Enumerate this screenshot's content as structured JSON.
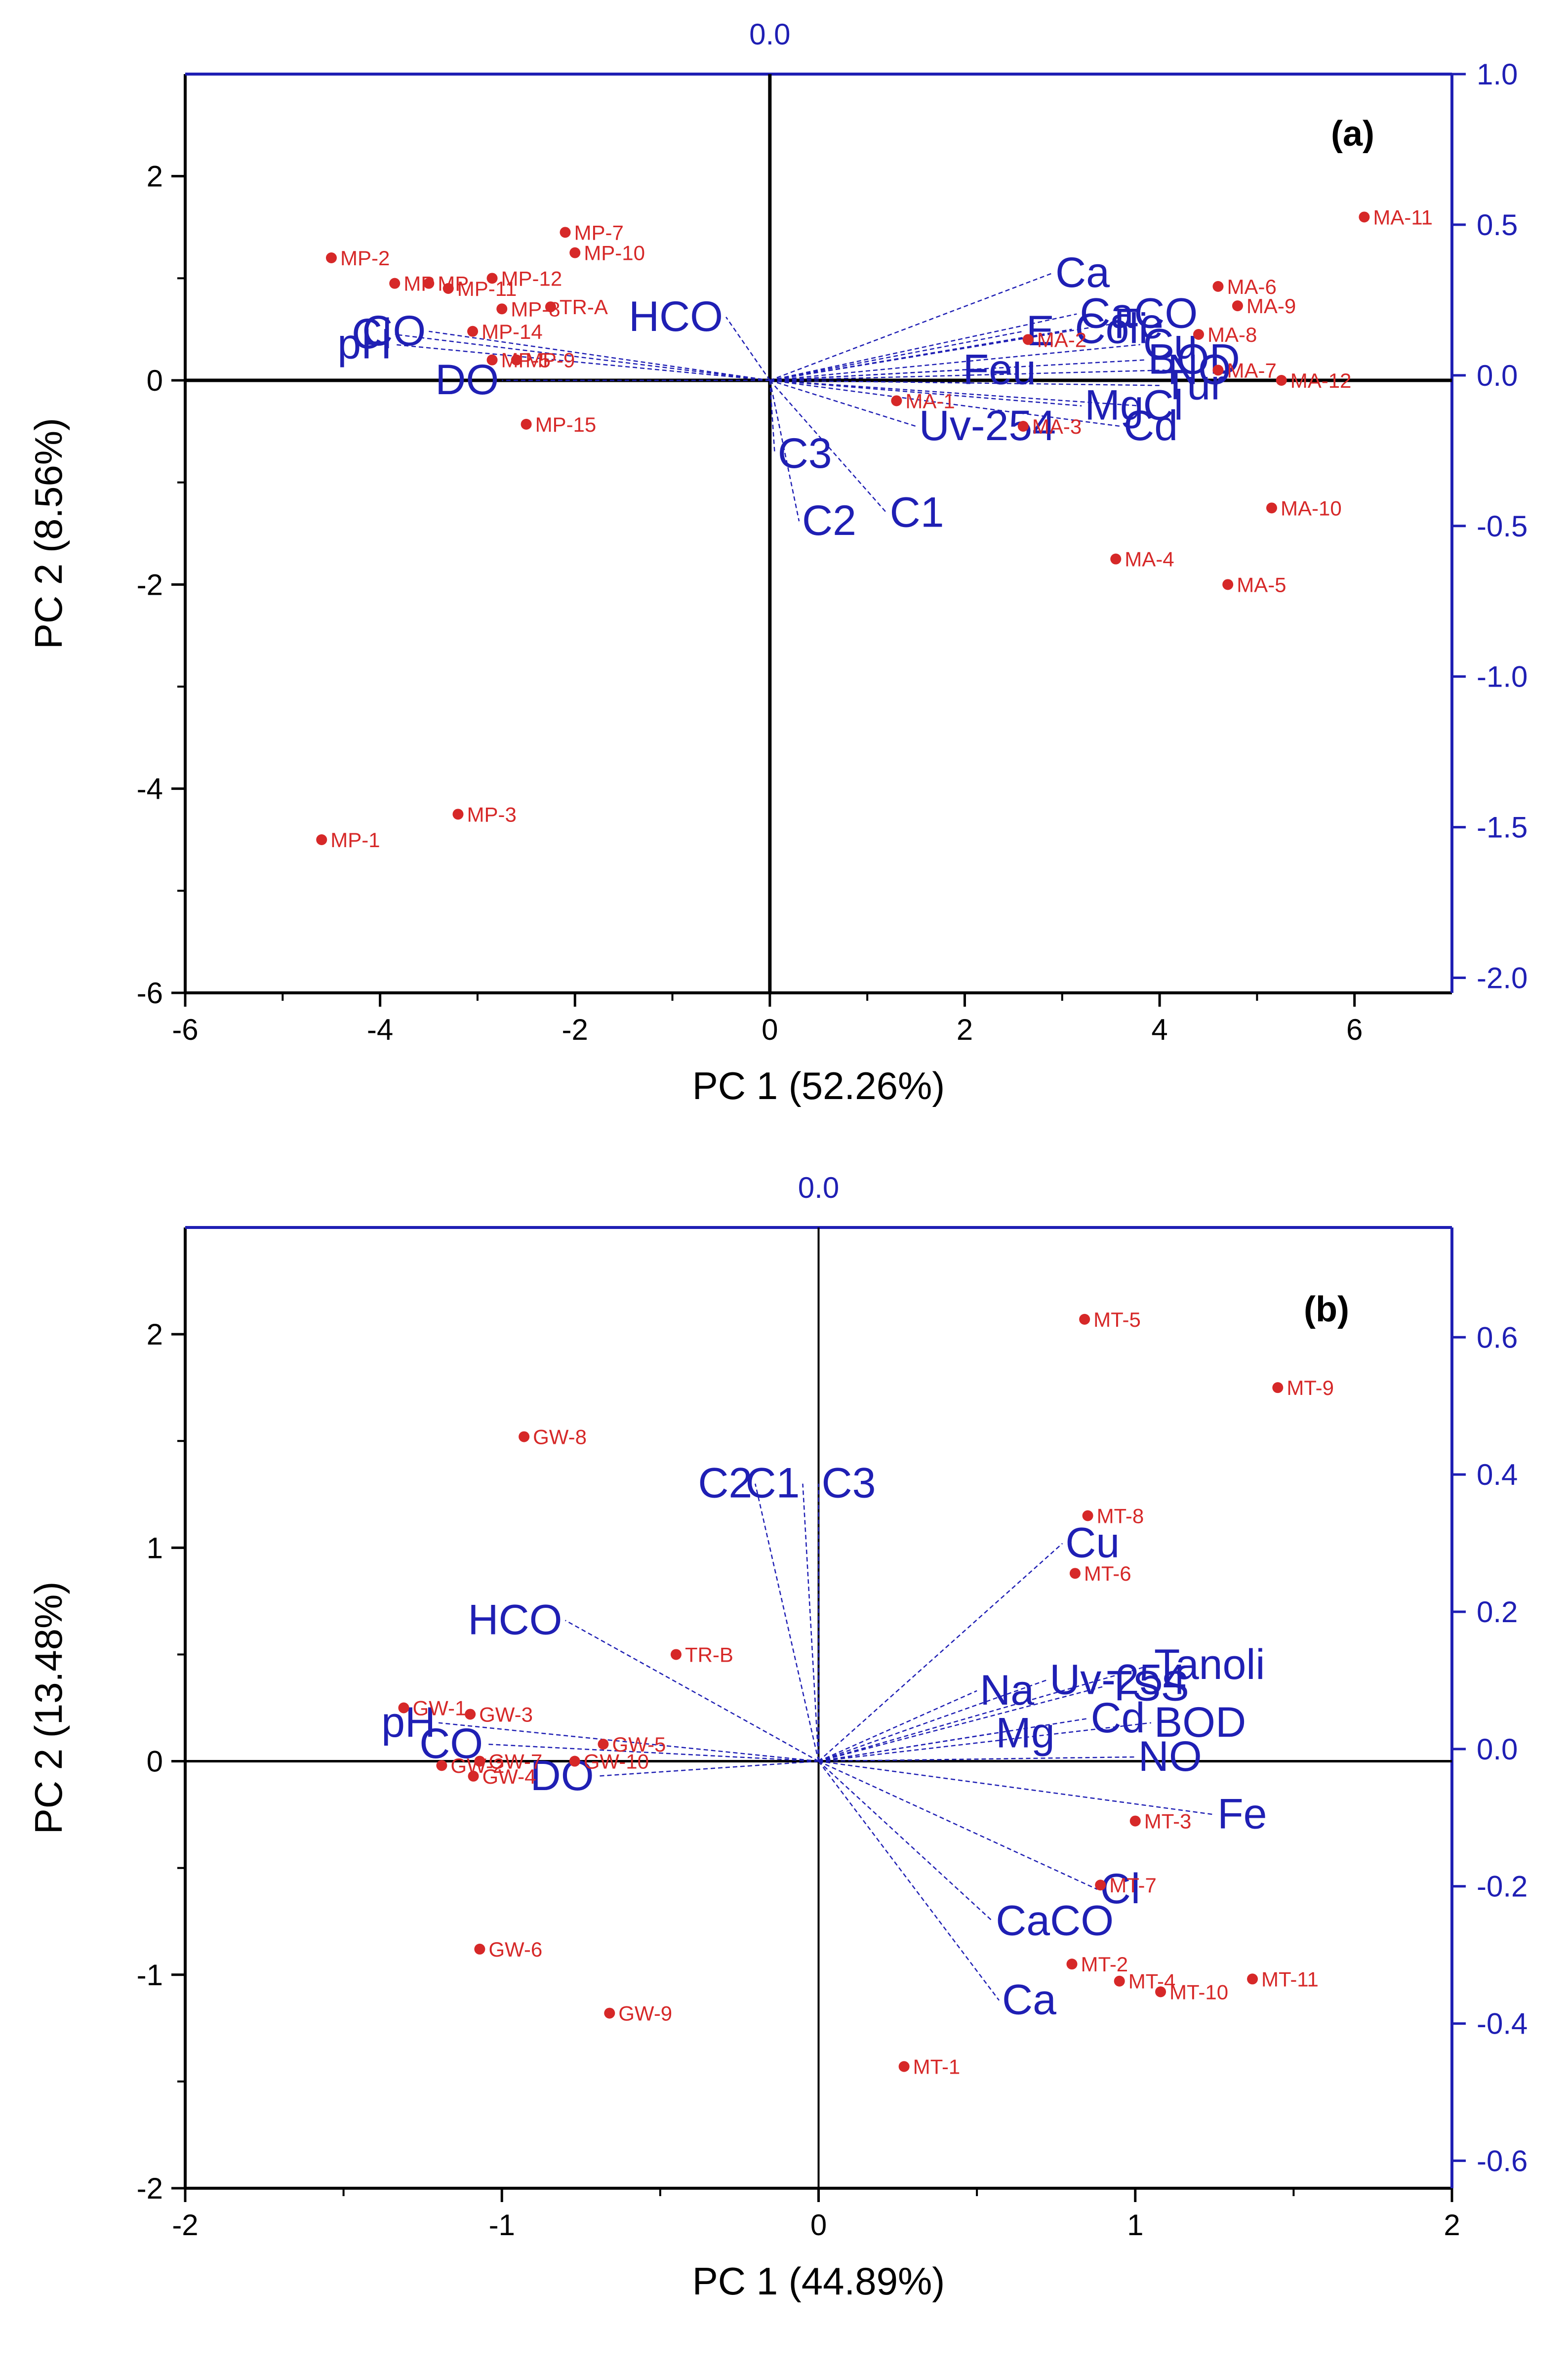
{
  "chart_data": [
    {
      "type": "scatter",
      "panel_label": "(a)",
      "xlabel": "PC 1 (52.26%)",
      "ylabel": "PC 2 (8.56%)",
      "xlim": [
        -6,
        7
      ],
      "ylim": [
        -6,
        3
      ],
      "x_ticks": [
        "-6",
        "-4",
        "-2",
        "0",
        "2",
        "4",
        "6"
      ],
      "y_ticks": [
        "-6",
        "-4",
        "-2",
        "0",
        "2"
      ],
      "loading_axis": {
        "top_label": "0.0",
        "ylim": [
          -2.05,
          1.0
        ],
        "ticks": [
          "1.0",
          "0.5",
          "0.0",
          "-0.5",
          "-1.0",
          "-1.5",
          "-2.0"
        ]
      },
      "colors": {
        "scores": "#d62828",
        "loadings": "#1f1fb4",
        "axes": "#1f1fb4"
      },
      "scores": [
        {
          "label": "MP-1",
          "x": -4.6,
          "y": -4.5
        },
        {
          "label": "MP-3",
          "x": -3.2,
          "y": -4.25
        },
        {
          "label": "MP-2",
          "x": -4.5,
          "y": 1.2
        },
        {
          "label": "MP-7",
          "x": -2.1,
          "y": 1.45
        },
        {
          "label": "MP-10",
          "x": -2.0,
          "y": 1.25
        },
        {
          "label": "MP-12",
          "x": -2.85,
          "y": 1.0
        },
        {
          "label": "MP",
          "x": -3.85,
          "y": 0.95
        },
        {
          "label": "MP",
          "x": -3.5,
          "y": 0.95
        },
        {
          "label": "MP-11",
          "x": -3.3,
          "y": 0.9
        },
        {
          "label": "MP-8",
          "x": -2.75,
          "y": 0.7
        },
        {
          "label": "TR-A",
          "x": -2.25,
          "y": 0.72
        },
        {
          "label": "MP-14",
          "x": -3.05,
          "y": 0.48
        },
        {
          "label": "MP-5",
          "x": -2.85,
          "y": 0.2
        },
        {
          "label": "MP-9",
          "x": -2.6,
          "y": 0.2
        },
        {
          "label": "MP-15",
          "x": -2.5,
          "y": -0.43
        },
        {
          "label": "MA-11",
          "x": 6.1,
          "y": 1.6
        },
        {
          "label": "MA-6",
          "x": 4.6,
          "y": 0.92
        },
        {
          "label": "MA-9",
          "x": 4.8,
          "y": 0.73
        },
        {
          "label": "MA-2",
          "x": 2.65,
          "y": 0.4
        },
        {
          "label": "MA-8",
          "x": 4.4,
          "y": 0.45
        },
        {
          "label": "MA-7",
          "x": 4.6,
          "y": 0.1
        },
        {
          "label": "MA-12",
          "x": 5.25,
          "y": 0.0
        },
        {
          "label": "MA-1",
          "x": 1.3,
          "y": -0.2
        },
        {
          "label": "MA-3",
          "x": 2.6,
          "y": -0.45
        },
        {
          "label": "MA-10",
          "x": 5.15,
          "y": -1.25
        },
        {
          "label": "MA-4",
          "x": 3.55,
          "y": -1.75
        },
        {
          "label": "MA-5",
          "x": 4.7,
          "y": -2.0
        }
      ],
      "loadings": [
        {
          "label": "Ca",
          "x": 2.9,
          "y": 1.05
        },
        {
          "label": "CaCO",
          "x": 3.15,
          "y": 0.65
        },
        {
          "label": "Fe",
          "x": 3.5,
          "y": 0.55
        },
        {
          "label": "Coli",
          "x": 3.1,
          "y": 0.5
        },
        {
          "label": "E",
          "x": 2.6,
          "y": 0.48
        },
        {
          "label": "Cu",
          "x": 3.8,
          "y": 0.35
        },
        {
          "label": "Feu",
          "x": 1.95,
          "y": 0.1
        },
        {
          "label": "BOD",
          "x": 3.85,
          "y": 0.2
        },
        {
          "label": "NO",
          "x": 4.05,
          "y": 0.1
        },
        {
          "label": "Tur",
          "x": 4.0,
          "y": -0.05
        },
        {
          "label": "Mg",
          "x": 3.2,
          "y": -0.25
        },
        {
          "label": "Cl",
          "x": 3.8,
          "y": -0.25
        },
        {
          "label": "Cd",
          "x": 3.6,
          "y": -0.45
        },
        {
          "label": "Uv-254",
          "x": 1.5,
          "y": -0.45
        },
        {
          "label": "HCO",
          "x": -0.45,
          "y": 0.62
        },
        {
          "label": "C3",
          "x": 0.05,
          "y": -0.72
        },
        {
          "label": "C2",
          "x": 0.3,
          "y": -1.38
        },
        {
          "label": "C1",
          "x": 1.2,
          "y": -1.3
        },
        {
          "label": "Cl",
          "x": -3.85,
          "y": 0.45
        },
        {
          "label": "pH",
          "x": -3.85,
          "y": 0.35
        },
        {
          "label": "CO",
          "x": -3.5,
          "y": 0.48
        },
        {
          "label": "DO",
          "x": -2.75,
          "y": 0.0
        }
      ]
    },
    {
      "type": "scatter",
      "panel_label": "(b)",
      "xlabel": "PC 1 (44.89%)",
      "ylabel": "PC 2 (13.48%)",
      "xlim": [
        -2,
        2
      ],
      "ylim": [
        -2,
        2.5
      ],
      "x_ticks": [
        "-2",
        "-1",
        "0",
        "1",
        "2"
      ],
      "y_ticks": [
        "-2",
        "-1",
        "0",
        "1",
        "2"
      ],
      "loading_axis": {
        "top_label": "0.0",
        "ylim": [
          -0.64,
          0.76
        ],
        "ticks": [
          "0.6",
          "0.4",
          "0.2",
          "0.0",
          "-0.2",
          "-0.4",
          "-0.6"
        ]
      },
      "colors": {
        "scores": "#d62828",
        "loadings": "#1f1fb4",
        "axes": "#1f1fb4"
      },
      "scores": [
        {
          "label": "MT-5",
          "x": 0.84,
          "y": 2.07
        },
        {
          "label": "MT-9",
          "x": 1.45,
          "y": 1.75
        },
        {
          "label": "MT-8",
          "x": 0.85,
          "y": 1.15
        },
        {
          "label": "MT-6",
          "x": 0.81,
          "y": 0.88
        },
        {
          "label": "MT-3",
          "x": 1.0,
          "y": -0.28
        },
        {
          "label": "MT-7",
          "x": 0.89,
          "y": -0.58
        },
        {
          "label": "MT-2",
          "x": 0.8,
          "y": -0.95
        },
        {
          "label": "MT-4",
          "x": 0.95,
          "y": -1.03
        },
        {
          "label": "MT-10",
          "x": 1.08,
          "y": -1.08
        },
        {
          "label": "MT-11",
          "x": 1.37,
          "y": -1.02
        },
        {
          "label": "MT-1",
          "x": 0.27,
          "y": -1.43
        },
        {
          "label": "GW-8",
          "x": -0.93,
          "y": 1.52
        },
        {
          "label": "TR-B",
          "x": -0.45,
          "y": 0.5
        },
        {
          "label": "GW-1",
          "x": -1.31,
          "y": 0.25
        },
        {
          "label": "GW-3",
          "x": -1.1,
          "y": 0.22
        },
        {
          "label": "GW-5",
          "x": -0.68,
          "y": 0.08
        },
        {
          "label": "GW-2",
          "x": -1.19,
          "y": -0.02
        },
        {
          "label": "GW-7",
          "x": -1.07,
          "y": 0.0
        },
        {
          "label": "GW-10",
          "x": -0.77,
          "y": 0.0
        },
        {
          "label": "GW-4",
          "x": -1.09,
          "y": -0.07
        },
        {
          "label": "GW-6",
          "x": -1.07,
          "y": -0.88
        },
        {
          "label": "GW-9",
          "x": -0.66,
          "y": -1.18
        }
      ],
      "loadings": [
        {
          "label": "C2",
          "x": -0.2,
          "y": 1.3
        },
        {
          "label": "C1",
          "x": -0.05,
          "y": 1.3
        },
        {
          "label": "C3",
          "x": 0.0,
          "y": 1.3
        },
        {
          "label": "Cu",
          "x": 0.77,
          "y": 1.02
        },
        {
          "label": "HCO",
          "x": -0.8,
          "y": 0.66
        },
        {
          "label": "Tanoli",
          "x": 1.05,
          "y": 0.45
        },
        {
          "label": "Uv-254",
          "x": 0.72,
          "y": 0.38
        },
        {
          "label": "TSS",
          "x": 0.9,
          "y": 0.35
        },
        {
          "label": "Na",
          "x": 0.5,
          "y": 0.33
        },
        {
          "label": "Cd",
          "x": 0.85,
          "y": 0.2
        },
        {
          "label": "Mg",
          "x": 0.55,
          "y": 0.13
        },
        {
          "label": "BOD",
          "x": 1.05,
          "y": 0.18
        },
        {
          "label": "NO",
          "x": 1.0,
          "y": 0.02
        },
        {
          "label": "Fe",
          "x": 1.25,
          "y": -0.25
        },
        {
          "label": "Cl",
          "x": 0.88,
          "y": -0.6
        },
        {
          "label": "CaCO",
          "x": 0.55,
          "y": -0.75
        },
        {
          "label": "Ca",
          "x": 0.57,
          "y": -1.12
        },
        {
          "label": "pH",
          "x": -1.2,
          "y": 0.18
        },
        {
          "label": "CO",
          "x": -1.05,
          "y": 0.08
        },
        {
          "label": "DO",
          "x": -0.7,
          "y": -0.07
        }
      ]
    }
  ]
}
